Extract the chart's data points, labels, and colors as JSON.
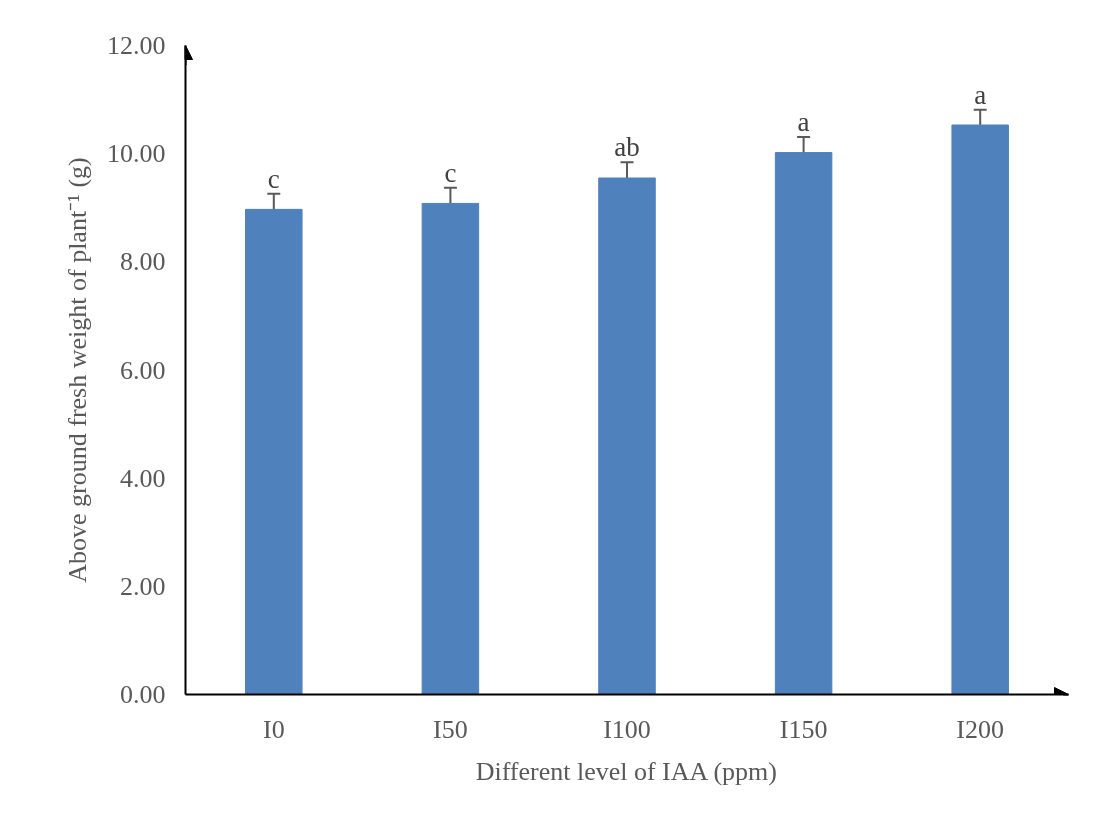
{
  "chart_data": {
    "type": "bar",
    "xlabel": "Different level of IAA (ppm)",
    "ylabel": "Above ground fresh weight of plant⁻¹ (g)",
    "categories": [
      "I0",
      "I50",
      "I100",
      "I150",
      "I200"
    ],
    "values": [
      8.97,
      9.08,
      9.55,
      10.02,
      10.53
    ],
    "errors": [
      0.29,
      0.29,
      0.29,
      0.29,
      0.28
    ],
    "color": "#4f81bd",
    "ylim": [
      0,
      12
    ],
    "yticks": [
      {
        "value": 0,
        "label": "0.00"
      },
      {
        "value": 2,
        "label": "2.00"
      },
      {
        "value": 4,
        "label": "4.00"
      },
      {
        "value": 6,
        "label": "6.00"
      },
      {
        "value": 8,
        "label": "8.00"
      },
      {
        "value": 10,
        "label": "10.00"
      },
      {
        "value": 12,
        "label": "12.00"
      }
    ],
    "grid": false,
    "annotations": [
      {
        "text": "c",
        "x": "I0",
        "y": 9.26
      },
      {
        "text": "c",
        "x": "I50",
        "y": 9.37
      },
      {
        "text": "ab",
        "x": "I100",
        "y": 9.84
      },
      {
        "text": "a",
        "x": "I150",
        "y": 10.31
      },
      {
        "text": "a",
        "x": "I200",
        "y": 10.81
      }
    ]
  }
}
